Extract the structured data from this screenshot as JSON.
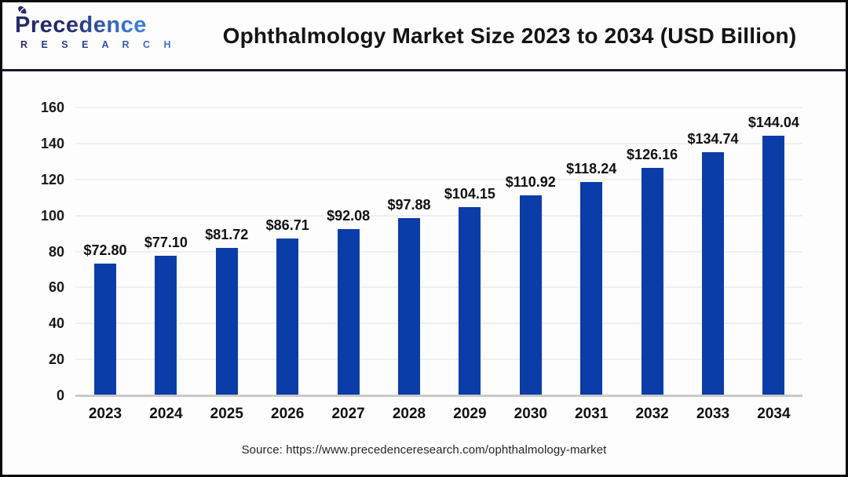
{
  "header": {
    "logo": {
      "brand": "Precedence",
      "sub_brand": "R E S E A R C H",
      "color_dark": "#252b69",
      "color_light": "#3c79d4"
    },
    "title": "Ophthalmology Market Size 2023 to 2034 (USD Billion)"
  },
  "chart_data": {
    "type": "bar",
    "title": "Ophthalmology Market Size 2023 to 2034 (USD Billion)",
    "categories": [
      "2023",
      "2024",
      "2025",
      "2026",
      "2027",
      "2028",
      "2029",
      "2030",
      "2031",
      "2032",
      "2033",
      "2034"
    ],
    "values": [
      72.8,
      77.1,
      81.72,
      86.71,
      92.08,
      97.88,
      104.15,
      110.92,
      118.24,
      126.16,
      134.74,
      144.04
    ],
    "value_labels": [
      "$72.80",
      "$77.10",
      "$81.72",
      "$86.71",
      "$92.08",
      "$97.88",
      "$104.15",
      "$110.92",
      "$118.24",
      "$126.16",
      "$134.74",
      "$144.04"
    ],
    "unit": "USD Billion",
    "xlabel": "",
    "ylabel": "",
    "ylim": [
      0,
      160
    ],
    "yticks": [
      0,
      20,
      40,
      60,
      80,
      100,
      120,
      140,
      160
    ],
    "grid": "horizontal-faint",
    "legend": "none",
    "bar_color": "#0b3da8"
  },
  "footer": {
    "source": "Source: https://www.precedenceresearch.com/ophthalmology-market"
  }
}
